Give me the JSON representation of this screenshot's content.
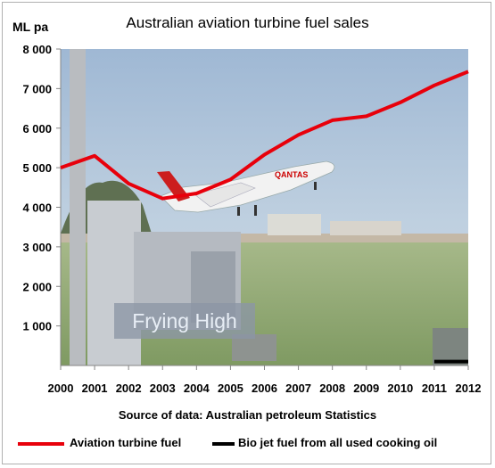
{
  "chart_data": {
    "type": "line",
    "title": "Australian aviation turbine fuel sales",
    "ylabel": "ML pa",
    "xlabel": "",
    "x": [
      "2000",
      "2001",
      "2002",
      "2003",
      "2004",
      "2005",
      "2006",
      "2007",
      "2008",
      "2009",
      "2010",
      "2011",
      "2012"
    ],
    "ylim": [
      0,
      8000
    ],
    "yticks": [
      "1 000",
      "2 000",
      "3 000",
      "4 000",
      "5 000",
      "6 000",
      "7 000",
      "8 000"
    ],
    "ytick_values": [
      1000,
      2000,
      3000,
      4000,
      5000,
      6000,
      7000,
      8000
    ],
    "grid": false,
    "legend_placement": "bottom",
    "background": "photo of a Qantas jet taking off",
    "series": [
      {
        "name": "Aviation turbine fuel",
        "color": "#e8000b",
        "values": [
          5000,
          5300,
          4600,
          4220,
          4350,
          4700,
          5330,
          5830,
          6200,
          6300,
          6650,
          7080,
          7430
        ]
      },
      {
        "name": "Bio jet fuel from all used cooking oil",
        "color": "#000000",
        "values": [
          null,
          null,
          null,
          null,
          null,
          null,
          null,
          null,
          null,
          null,
          null,
          100,
          100
        ]
      }
    ],
    "source": "Source of data: Australian petroleum Statistics",
    "watermark": "Frying High"
  }
}
